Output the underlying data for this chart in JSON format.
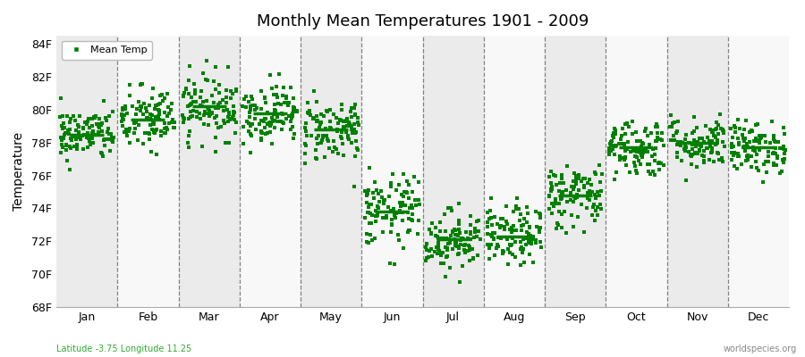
{
  "title": "Monthly Mean Temperatures 1901 - 2009",
  "ylabel": "Temperature",
  "subtitle_left": "Latitude -3.75 Longitude 11.25",
  "subtitle_right": "worldspecies.org",
  "legend_label": "Mean Temp",
  "dot_color": "#008000",
  "mean_line_color": "#008000",
  "background_color": "#ffffff",
  "band_color_odd": "#ebebeb",
  "band_color_even": "#f8f8f8",
  "ylim": [
    68,
    84.5
  ],
  "yticks": [
    68,
    70,
    72,
    74,
    76,
    78,
    80,
    82,
    84
  ],
  "ytick_labels": [
    "68F",
    "70F",
    "72F",
    "74F",
    "76F",
    "78F",
    "80F",
    "82F",
    "84F"
  ],
  "months": [
    "Jan",
    "Feb",
    "Mar",
    "Apr",
    "May",
    "Jun",
    "Jul",
    "Aug",
    "Sep",
    "Oct",
    "Nov",
    "Dec"
  ],
  "monthly_means": [
    78.5,
    79.4,
    80.2,
    79.8,
    78.8,
    73.8,
    72.1,
    72.3,
    74.8,
    77.7,
    78.0,
    77.7
  ],
  "monthly_spreads": [
    0.8,
    1.0,
    1.0,
    0.9,
    1.0,
    1.1,
    0.9,
    0.9,
    1.0,
    0.9,
    0.8,
    0.8
  ],
  "n_years": 109,
  "seed": 42
}
